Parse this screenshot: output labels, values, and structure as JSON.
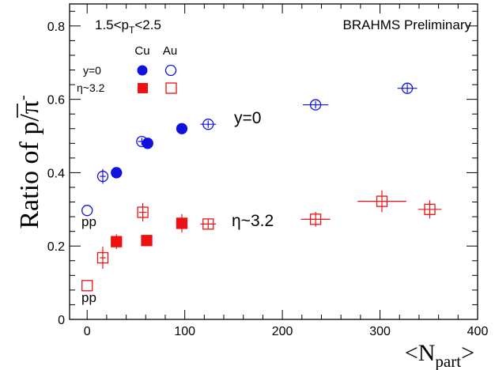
{
  "chart_data": {
    "type": "scatter",
    "title": "",
    "cut_label": {
      "pre": "1.5<p",
      "sub": "T",
      "post": "<2.5"
    },
    "experiment_label": "BRAHMS  Preliminary",
    "xlabel": {
      "pre": "<N",
      "sub": "part",
      "post": ">"
    },
    "ylabel": {
      "pre": "Ratio of ",
      "num": "p",
      "slash": "/",
      "den": "π",
      "sup": "-"
    },
    "xlim": [
      -18,
      400
    ],
    "ylim": [
      0,
      0.86
    ],
    "xticks": [
      0,
      100,
      200,
      300,
      400
    ],
    "xtick_labels": [
      "0",
      "100",
      "200",
      "300",
      "400"
    ],
    "yticks": [
      0,
      0.2,
      0.4,
      0.6,
      0.8
    ],
    "ytick_labels": [
      "0",
      "0.2",
      "0.4",
      "0.6",
      "0.8"
    ],
    "legend": {
      "col_headers": [
        "Cu",
        "Au"
      ],
      "rows": [
        {
          "label": "y=0",
          "color": "#1111dd"
        },
        {
          "label": "η~3.2",
          "color": "#ee1111"
        }
      ]
    },
    "annotations": [
      {
        "text": "y=0",
        "x": 150,
        "y": 0.53
      },
      {
        "text": "η~3.2",
        "x": 145,
        "y": 0.27
      },
      {
        "text": "pp",
        "x": 2,
        "y": 0.27
      },
      {
        "text": "pp",
        "x": 0,
        "y": 0.06
      }
    ],
    "series": [
      {
        "name": "Cu y=0",
        "marker": "circle",
        "filled": true,
        "color": "#1111dd",
        "points": [
          {
            "x": 30,
            "y": 0.4,
            "yerr": 0.01,
            "xerr": 0
          },
          {
            "x": 62,
            "y": 0.48,
            "yerr": 0.008,
            "xerr": 0
          },
          {
            "x": 97,
            "y": 0.52,
            "yerr": 0.008,
            "xerr": 0
          }
        ]
      },
      {
        "name": "Au y=0",
        "marker": "circle",
        "filled": false,
        "color": "#1111dd",
        "points": [
          {
            "x": 0,
            "y": 0.297,
            "yerr": 0,
            "xerr": 0
          },
          {
            "x": 16,
            "y": 0.39,
            "yerr": 0.02,
            "xerr": 3
          },
          {
            "x": 56,
            "y": 0.485,
            "yerr": 0.01,
            "xerr": 4
          },
          {
            "x": 124,
            "y": 0.532,
            "yerr": 0.01,
            "xerr": 8
          },
          {
            "x": 234,
            "y": 0.585,
            "yerr": 0.01,
            "xerr": 13
          },
          {
            "x": 328,
            "y": 0.63,
            "yerr": 0.012,
            "xerr": 10
          }
        ]
      },
      {
        "name": "Cu η~3.2",
        "marker": "square",
        "filled": true,
        "color": "#ee1111",
        "points": [
          {
            "x": 30,
            "y": 0.212,
            "yerr": 0.02,
            "xerr": 0
          },
          {
            "x": 61,
            "y": 0.215,
            "yerr": 0.012,
            "xerr": 0
          },
          {
            "x": 97,
            "y": 0.262,
            "yerr": 0.025,
            "xerr": 0
          }
        ]
      },
      {
        "name": "Au η~3.2",
        "marker": "square",
        "filled": false,
        "color": "#ee1111",
        "points": [
          {
            "x": 0,
            "y": 0.092,
            "yerr": 0,
            "xerr": 0
          },
          {
            "x": 16,
            "y": 0.168,
            "yerr": 0.03,
            "xerr": 3
          },
          {
            "x": 57,
            "y": 0.292,
            "yerr": 0.025,
            "xerr": 4
          },
          {
            "x": 124,
            "y": 0.26,
            "yerr": 0.015,
            "xerr": 8
          },
          {
            "x": 234,
            "y": 0.273,
            "yerr": 0.02,
            "xerr": 15
          },
          {
            "x": 302,
            "y": 0.322,
            "yerr": 0.03,
            "xerr": 25
          },
          {
            "x": 351,
            "y": 0.3,
            "yerr": 0.025,
            "xerr": 12
          }
        ]
      }
    ]
  }
}
